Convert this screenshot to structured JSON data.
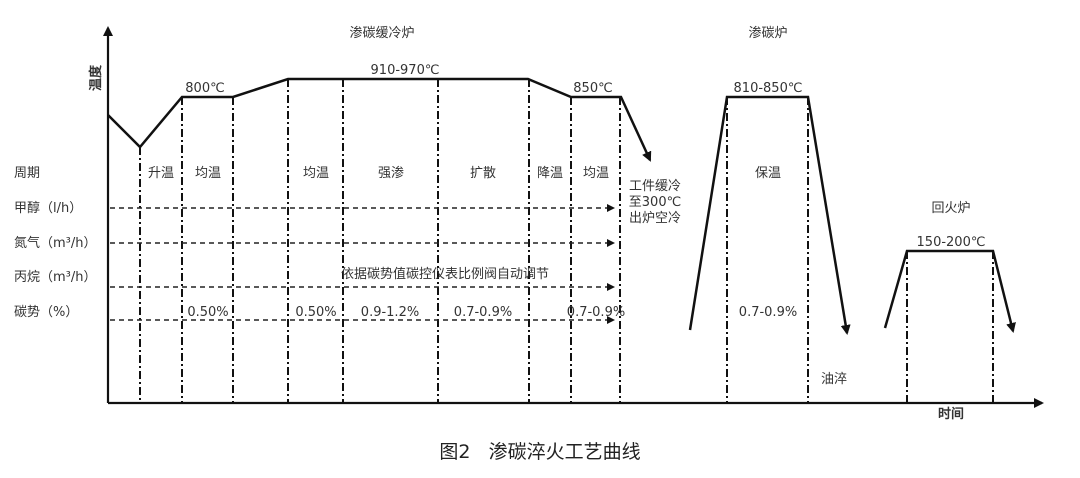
{
  "diagram": {
    "y_axis_label": "温度",
    "x_axis_label": "时间",
    "caption": "图2   渗碳淬火工艺曲线",
    "furnaces": [
      {
        "name": "渗碳缓冷炉",
        "temps": [
          "800℃",
          "910-970℃",
          "850℃"
        ]
      },
      {
        "name": "渗碳炉",
        "temps": [
          "810-850℃"
        ],
        "stage": "保温",
        "carbon": "0.7-0.9%",
        "quench": "油淬"
      },
      {
        "name": "回火炉",
        "temps": [
          "150-200℃"
        ]
      }
    ],
    "row_labels": [
      "周期",
      "甲醇（l/h）",
      "氮气（m³/h）",
      "丙烷（m³/h）",
      "碳势（%）"
    ],
    "periods": [
      "升温",
      "均温",
      "均温",
      "强渗",
      "扩散",
      "降温",
      "均温"
    ],
    "carbon_potentials": [
      "0.50%",
      "0.50%",
      "0.9-1.2%",
      "0.7-0.9%",
      "0.7-0.9%"
    ],
    "propane_note": "依据碳势值碳控仪表比例阀自动调节",
    "cooling_note": [
      "工件缓冷",
      "至300℃",
      "出炉空冷"
    ]
  }
}
